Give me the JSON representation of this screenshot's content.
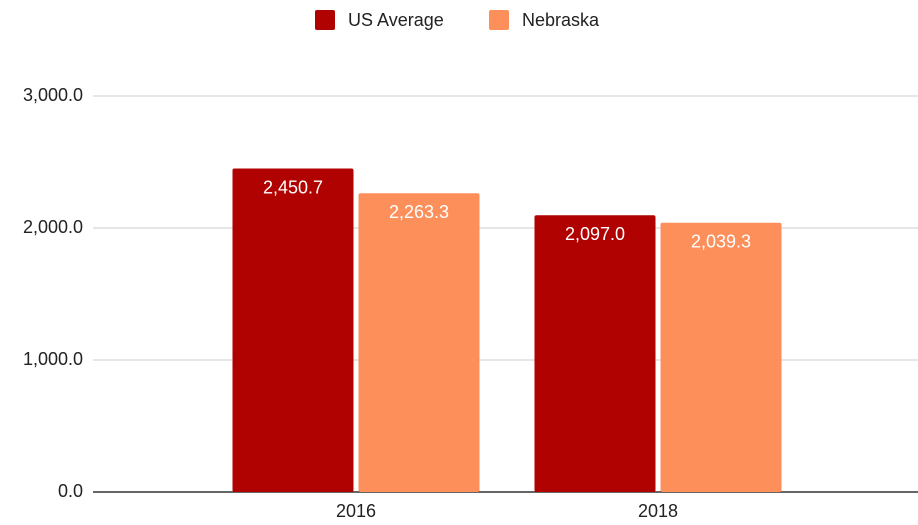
{
  "chart_data": {
    "type": "bar",
    "categories": [
      "2016",
      "2018"
    ],
    "series": [
      {
        "name": "US Average",
        "color": "#b10202",
        "values": [
          2450.7,
          2097.0
        ],
        "value_labels": [
          "2,450.7",
          "2,097.0"
        ]
      },
      {
        "name": "Nebraska",
        "color": "#fd8f5b",
        "values": [
          2263.3,
          2039.3
        ],
        "value_labels": [
          "2,263.3",
          "2,039.3"
        ]
      }
    ],
    "ylim": [
      0,
      3000
    ],
    "yticks": [
      {
        "value": 0,
        "label": "0.0"
      },
      {
        "value": 1000,
        "label": "1,000.0"
      },
      {
        "value": 2000,
        "label": "2,000.0"
      },
      {
        "value": 3000,
        "label": "3,000.0"
      }
    ],
    "grid": true,
    "legend": "top"
  }
}
